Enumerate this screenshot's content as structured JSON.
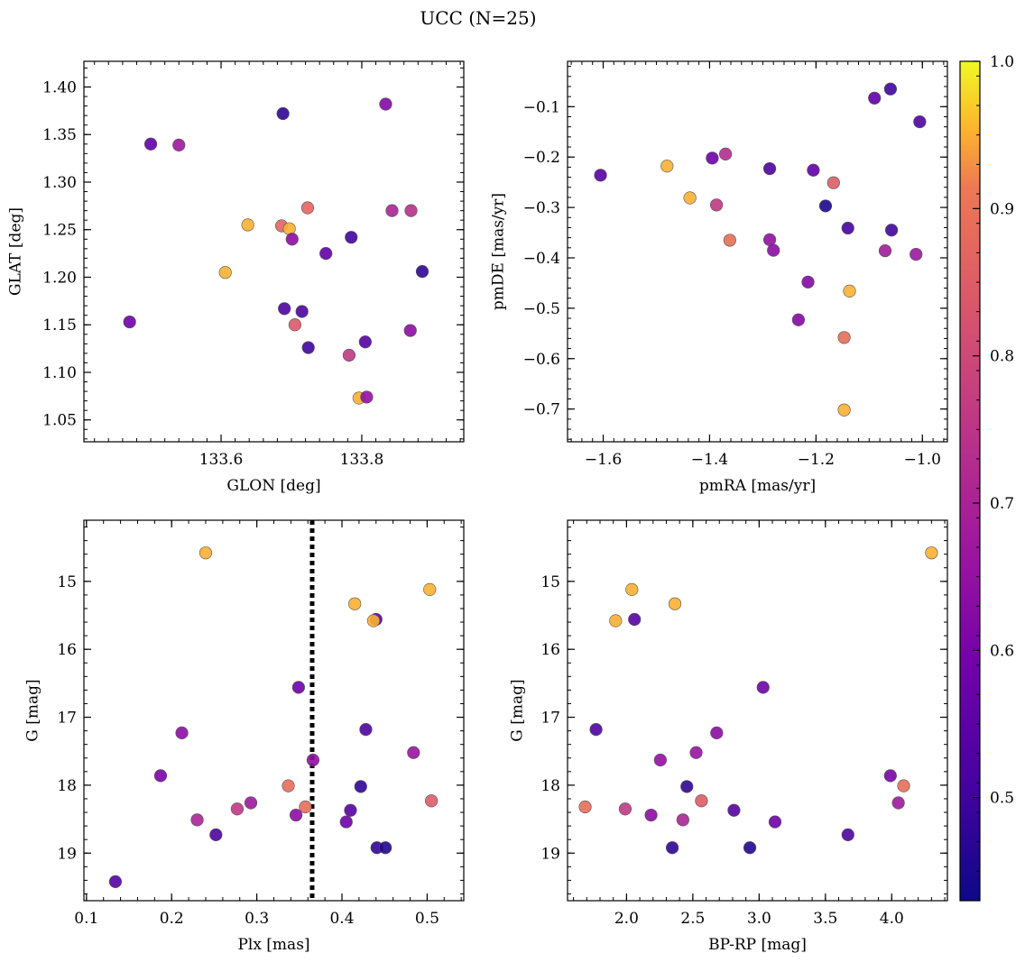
{
  "figure": {
    "title": "UCC (N=25)"
  },
  "colorbar": {
    "cmap": "plasma",
    "min": 0.43,
    "max": 1.0,
    "ticks": [
      0.5,
      0.6,
      0.7,
      0.8,
      0.9,
      1.0
    ],
    "tick_labels": [
      "0.5",
      "0.6",
      "0.7",
      "0.8",
      "0.9",
      "1.0"
    ]
  },
  "chart_data": [
    {
      "type": "scatter",
      "xlabel": "GLON [deg]",
      "ylabel": "GLAT [deg]",
      "xlim": [
        133.405,
        133.945
      ],
      "ylim": [
        1.027,
        1.427
      ],
      "xticks": [
        133.6,
        133.8
      ],
      "xtick_labels": [
        "133.6",
        "133.8"
      ],
      "yticks": [
        1.05,
        1.1,
        1.15,
        1.2,
        1.25,
        1.3,
        1.35,
        1.4
      ],
      "ytick_labels": [
        "1.05",
        "1.10",
        "1.15",
        "1.20",
        "1.25",
        "1.30",
        "1.35",
        "1.40"
      ],
      "invert_y": false,
      "points": [
        {
          "x": 133.688,
          "y": 1.372,
          "c": 0.48
        },
        {
          "x": 133.834,
          "y": 1.382,
          "c": 0.62
        },
        {
          "x": 133.5,
          "y": 1.34,
          "c": 0.56
        },
        {
          "x": 133.54,
          "y": 1.339,
          "c": 0.67
        },
        {
          "x": 133.723,
          "y": 1.273,
          "c": 0.86
        },
        {
          "x": 133.843,
          "y": 1.27,
          "c": 0.7
        },
        {
          "x": 133.87,
          "y": 1.27,
          "c": 0.73
        },
        {
          "x": 133.638,
          "y": 1.255,
          "c": 0.97
        },
        {
          "x": 133.686,
          "y": 1.254,
          "c": 0.86
        },
        {
          "x": 133.697,
          "y": 1.251,
          "c": 0.97
        },
        {
          "x": 133.701,
          "y": 1.24,
          "c": 0.64
        },
        {
          "x": 133.785,
          "y": 1.242,
          "c": 0.5
        },
        {
          "x": 133.749,
          "y": 1.225,
          "c": 0.56
        },
        {
          "x": 133.606,
          "y": 1.205,
          "c": 0.97
        },
        {
          "x": 133.886,
          "y": 1.206,
          "c": 0.48
        },
        {
          "x": 133.69,
          "y": 1.167,
          "c": 0.52
        },
        {
          "x": 133.715,
          "y": 1.164,
          "c": 0.52
        },
        {
          "x": 133.705,
          "y": 1.15,
          "c": 0.83
        },
        {
          "x": 133.47,
          "y": 1.153,
          "c": 0.58
        },
        {
          "x": 133.869,
          "y": 1.144,
          "c": 0.64
        },
        {
          "x": 133.724,
          "y": 1.126,
          "c": 0.5
        },
        {
          "x": 133.805,
          "y": 1.132,
          "c": 0.54
        },
        {
          "x": 133.782,
          "y": 1.118,
          "c": 0.75
        },
        {
          "x": 133.796,
          "y": 1.073,
          "c": 0.97
        },
        {
          "x": 133.807,
          "y": 1.074,
          "c": 0.65
        }
      ]
    },
    {
      "type": "scatter",
      "xlabel": "pmRA [mas/yr]",
      "ylabel": "pmDE [mas/yr]",
      "xlim": [
        -1.667,
        -0.953
      ],
      "ylim": [
        -0.765,
        -0.01
      ],
      "xticks": [
        -1.6,
        -1.4,
        -1.2,
        -1.0
      ],
      "xtick_labels": [
        "−1.6",
        "−1.4",
        "−1.2",
        "−1.0"
      ],
      "yticks": [
        -0.7,
        -0.6,
        -0.5,
        -0.4,
        -0.3,
        -0.2,
        -0.1
      ],
      "ytick_labels": [
        "−0.7",
        "−0.6",
        "−0.5",
        "−0.4",
        "−0.3",
        "−0.2",
        "−0.1"
      ],
      "invert_y": false,
      "points": [
        {
          "x": -1.06,
          "y": -0.065,
          "c": 0.5
        },
        {
          "x": -1.09,
          "y": -0.083,
          "c": 0.56
        },
        {
          "x": -1.005,
          "y": -0.13,
          "c": 0.52
        },
        {
          "x": -1.605,
          "y": -0.236,
          "c": 0.54
        },
        {
          "x": -1.48,
          "y": -0.218,
          "c": 0.97
        },
        {
          "x": -1.395,
          "y": -0.202,
          "c": 0.58
        },
        {
          "x": -1.37,
          "y": -0.194,
          "c": 0.72
        },
        {
          "x": -1.287,
          "y": -0.223,
          "c": 0.52
        },
        {
          "x": -1.205,
          "y": -0.226,
          "c": 0.56
        },
        {
          "x": -1.167,
          "y": -0.251,
          "c": 0.84
        },
        {
          "x": -1.437,
          "y": -0.281,
          "c": 0.97
        },
        {
          "x": -1.387,
          "y": -0.295,
          "c": 0.75
        },
        {
          "x": -1.182,
          "y": -0.297,
          "c": 0.45
        },
        {
          "x": -1.14,
          "y": -0.341,
          "c": 0.51
        },
        {
          "x": -1.058,
          "y": -0.345,
          "c": 0.5
        },
        {
          "x": -1.362,
          "y": -0.365,
          "c": 0.88
        },
        {
          "x": -1.287,
          "y": -0.364,
          "c": 0.65
        },
        {
          "x": -1.28,
          "y": -0.385,
          "c": 0.64
        },
        {
          "x": -1.07,
          "y": -0.386,
          "c": 0.68
        },
        {
          "x": -1.012,
          "y": -0.393,
          "c": 0.67
        },
        {
          "x": -1.215,
          "y": -0.448,
          "c": 0.62
        },
        {
          "x": -1.137,
          "y": -0.466,
          "c": 0.97
        },
        {
          "x": -1.233,
          "y": -0.523,
          "c": 0.62
        },
        {
          "x": -1.147,
          "y": -0.558,
          "c": 0.88
        },
        {
          "x": -1.147,
          "y": -0.702,
          "c": 0.97
        }
      ]
    },
    {
      "type": "scatter",
      "xlabel": "Plx [mas]",
      "ylabel": "G [mag]",
      "xlim": [
        0.097,
        0.543
      ],
      "ylim": [
        14.1,
        19.7
      ],
      "xticks": [
        0.1,
        0.2,
        0.3,
        0.4,
        0.5
      ],
      "xtick_labels": [
        "0.1",
        "0.2",
        "0.3",
        "0.4",
        "0.5"
      ],
      "yticks": [
        15,
        16,
        17,
        18,
        19
      ],
      "ytick_labels": [
        "15",
        "16",
        "17",
        "18",
        "19"
      ],
      "invert_y": true,
      "vline": 0.365,
      "points": [
        {
          "x": 0.24,
          "y": 14.58,
          "c": 0.97
        },
        {
          "x": 0.503,
          "y": 15.12,
          "c": 0.97
        },
        {
          "x": 0.415,
          "y": 15.33,
          "c": 0.97
        },
        {
          "x": 0.44,
          "y": 15.56,
          "c": 0.54
        },
        {
          "x": 0.437,
          "y": 15.58,
          "c": 0.97
        },
        {
          "x": 0.349,
          "y": 16.56,
          "c": 0.58
        },
        {
          "x": 0.428,
          "y": 17.18,
          "c": 0.52
        },
        {
          "x": 0.212,
          "y": 17.23,
          "c": 0.64
        },
        {
          "x": 0.484,
          "y": 17.52,
          "c": 0.66
        },
        {
          "x": 0.366,
          "y": 17.63,
          "c": 0.65
        },
        {
          "x": 0.187,
          "y": 17.86,
          "c": 0.6
        },
        {
          "x": 0.337,
          "y": 18.01,
          "c": 0.88
        },
        {
          "x": 0.422,
          "y": 18.02,
          "c": 0.48
        },
        {
          "x": 0.505,
          "y": 18.23,
          "c": 0.84
        },
        {
          "x": 0.293,
          "y": 18.26,
          "c": 0.67
        },
        {
          "x": 0.357,
          "y": 18.32,
          "c": 0.88
        },
        {
          "x": 0.277,
          "y": 18.35,
          "c": 0.75
        },
        {
          "x": 0.41,
          "y": 18.37,
          "c": 0.54
        },
        {
          "x": 0.346,
          "y": 18.44,
          "c": 0.64
        },
        {
          "x": 0.23,
          "y": 18.51,
          "c": 0.7
        },
        {
          "x": 0.405,
          "y": 18.54,
          "c": 0.58
        },
        {
          "x": 0.252,
          "y": 18.73,
          "c": 0.52
        },
        {
          "x": 0.441,
          "y": 18.92,
          "c": 0.48
        },
        {
          "x": 0.451,
          "y": 18.92,
          "c": 0.46
        },
        {
          "x": 0.134,
          "y": 19.42,
          "c": 0.54
        }
      ]
    },
    {
      "type": "scatter",
      "xlabel": "BP-RP [mag]",
      "ylabel": "G [mag]",
      "xlim": [
        1.555,
        4.42
      ],
      "ylim": [
        14.1,
        19.7
      ],
      "xticks": [
        2.0,
        2.5,
        3.0,
        3.5,
        4.0
      ],
      "xtick_labels": [
        "2.0",
        "2.5",
        "3.0",
        "3.5",
        "4.0"
      ],
      "yticks": [
        15,
        16,
        17,
        18,
        19
      ],
      "ytick_labels": [
        "15",
        "16",
        "17",
        "18",
        "19"
      ],
      "invert_y": true,
      "points": [
        {
          "x": 4.3,
          "y": 14.58,
          "c": 0.97
        },
        {
          "x": 2.04,
          "y": 15.12,
          "c": 0.97
        },
        {
          "x": 2.365,
          "y": 15.33,
          "c": 0.97
        },
        {
          "x": 2.06,
          "y": 15.56,
          "c": 0.54
        },
        {
          "x": 1.918,
          "y": 15.58,
          "c": 0.97
        },
        {
          "x": 3.03,
          "y": 16.56,
          "c": 0.58
        },
        {
          "x": 1.77,
          "y": 17.18,
          "c": 0.52
        },
        {
          "x": 2.68,
          "y": 17.23,
          "c": 0.64
        },
        {
          "x": 2.525,
          "y": 17.52,
          "c": 0.66
        },
        {
          "x": 2.255,
          "y": 17.63,
          "c": 0.65
        },
        {
          "x": 3.99,
          "y": 17.86,
          "c": 0.6
        },
        {
          "x": 4.09,
          "y": 18.01,
          "c": 0.88
        },
        {
          "x": 2.455,
          "y": 18.02,
          "c": 0.48
        },
        {
          "x": 2.565,
          "y": 18.23,
          "c": 0.84
        },
        {
          "x": 4.05,
          "y": 18.26,
          "c": 0.67
        },
        {
          "x": 1.688,
          "y": 18.32,
          "c": 0.88
        },
        {
          "x": 1.99,
          "y": 18.35,
          "c": 0.75
        },
        {
          "x": 2.81,
          "y": 18.37,
          "c": 0.54
        },
        {
          "x": 2.185,
          "y": 18.44,
          "c": 0.64
        },
        {
          "x": 2.425,
          "y": 18.51,
          "c": 0.7
        },
        {
          "x": 3.12,
          "y": 18.54,
          "c": 0.58
        },
        {
          "x": 3.67,
          "y": 18.73,
          "c": 0.52
        },
        {
          "x": 2.345,
          "y": 18.92,
          "c": 0.48
        },
        {
          "x": 2.93,
          "y": 18.92,
          "c": 0.46
        }
      ]
    }
  ]
}
